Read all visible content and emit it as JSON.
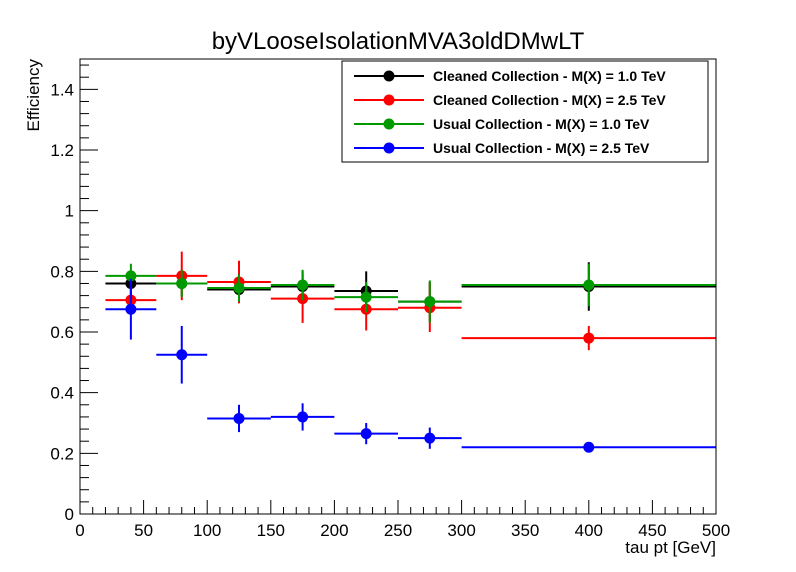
{
  "chart_data": {
    "type": "scatter",
    "title": "byVLooseIsolationMVA3oldDMwLT",
    "xlabel": "tau pt [GeV]",
    "ylabel": "Efficiency",
    "xlim": [
      0,
      500
    ],
    "ylim": [
      0,
      1.5
    ],
    "x_ticks": [
      0,
      50,
      100,
      150,
      200,
      250,
      300,
      350,
      400,
      450,
      500
    ],
    "y_ticks": [
      0,
      0.2,
      0.4,
      0.6,
      0.8,
      1,
      1.2,
      1.4
    ],
    "x_tick_labels": [
      "0",
      "50",
      "100",
      "150",
      "200",
      "250",
      "300",
      "350",
      "400",
      "450",
      "500"
    ],
    "y_tick_labels": [
      "0",
      "0.2",
      "0.4",
      "0.6",
      "0.8",
      "1",
      "1.2",
      "1.4"
    ],
    "legend_position": "top-right",
    "grid": false,
    "bins": [
      [
        20,
        60
      ],
      [
        60,
        100
      ],
      [
        100,
        150
      ],
      [
        150,
        200
      ],
      [
        200,
        250
      ],
      [
        250,
        300
      ],
      [
        300,
        500
      ]
    ],
    "x": [
      40,
      80,
      125,
      175,
      225,
      275,
      400
    ],
    "series": [
      {
        "name": "Cleaned Collection - M(X) = 1.0 TeV",
        "color": "#000000",
        "values": [
          0.76,
          0.76,
          0.74,
          0.75,
          0.735,
          0.7,
          0.75
        ],
        "errors": [
          0.035,
          0.04,
          0.045,
          0.05,
          0.065,
          0.065,
          0.08
        ]
      },
      {
        "name": "Cleaned Collection - M(X) = 2.5 TeV",
        "color": "#ff0000",
        "values": [
          0.705,
          0.785,
          0.765,
          0.71,
          0.675,
          0.68,
          0.58
        ],
        "errors": [
          0.04,
          0.08,
          0.07,
          0.08,
          0.07,
          0.08,
          0.04
        ]
      },
      {
        "name": "Usual Collection - M(X) = 1.0 TeV",
        "color": "#009900",
        "values": [
          0.785,
          0.76,
          0.745,
          0.755,
          0.715,
          0.7,
          0.755
        ],
        "errors": [
          0.04,
          0.045,
          0.045,
          0.05,
          0.05,
          0.07,
          0.07
        ]
      },
      {
        "name": "Usual Collection - M(X) = 2.5 TeV",
        "color": "#0000ff",
        "values": [
          0.675,
          0.525,
          0.315,
          0.32,
          0.265,
          0.25,
          0.22
        ],
        "errors": [
          0.1,
          0.095,
          0.045,
          0.045,
          0.035,
          0.035,
          0.012
        ]
      }
    ]
  }
}
